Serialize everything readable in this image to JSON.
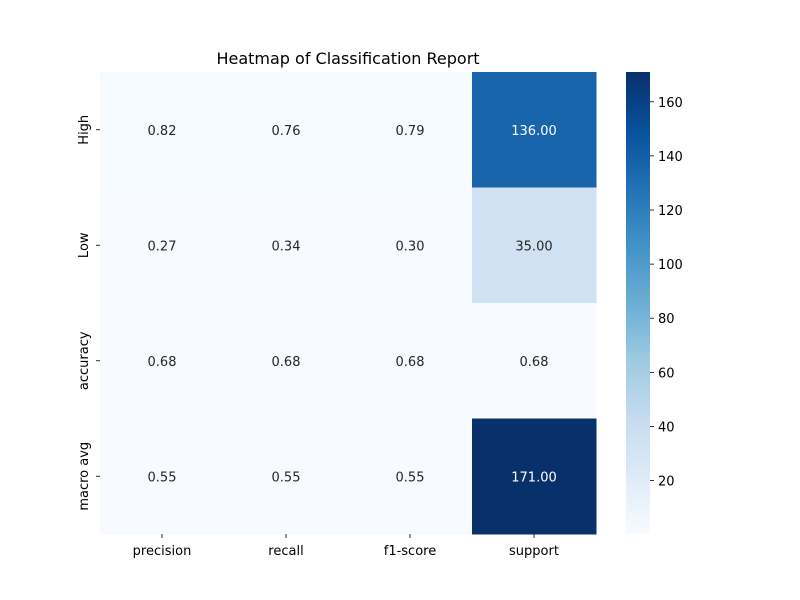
{
  "chart_data": {
    "type": "heatmap",
    "title": "Heatmap of Classification Report",
    "xlabel": "",
    "ylabel": "",
    "columns": [
      "precision",
      "recall",
      "f1-score",
      "support"
    ],
    "rows": [
      "High",
      "Low",
      "accuracy",
      "macro avg"
    ],
    "values": [
      [
        0.82,
        0.76,
        0.79,
        136.0
      ],
      [
        0.27,
        0.34,
        0.3,
        35.0
      ],
      [
        0.68,
        0.68,
        0.68,
        0.68
      ],
      [
        0.55,
        0.55,
        0.55,
        171.0
      ]
    ],
    "cell_labels": [
      [
        "0.82",
        "0.76",
        "0.79",
        "136.00"
      ],
      [
        "0.27",
        "0.34",
        "0.30",
        "35.00"
      ],
      [
        "0.68",
        "0.68",
        "0.68",
        "0.68"
      ],
      [
        "0.55",
        "0.55",
        "0.55",
        "171.00"
      ]
    ],
    "colormap": "Blues",
    "colormap_stops": [
      "#f7fbff",
      "#deebf7",
      "#c6dbef",
      "#9ecae1",
      "#6baed6",
      "#4292c6",
      "#2171b5",
      "#08519c",
      "#08306b"
    ],
    "vmin": 0.27,
    "vmax": 171.0,
    "colorbar_ticks": [
      20,
      40,
      60,
      80,
      100,
      120,
      140,
      160
    ],
    "colorbar_tick_labels": [
      "20",
      "40",
      "60",
      "80",
      "100",
      "120",
      "140",
      "160"
    ],
    "grid": false,
    "colorbar": "right"
  }
}
